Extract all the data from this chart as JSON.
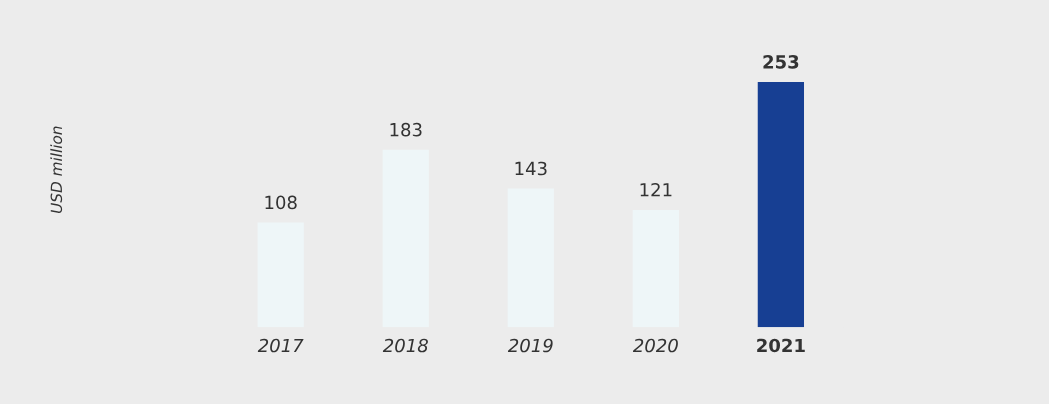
{
  "chart_data": {
    "type": "bar",
    "annotations": [
      "USD million"
    ],
    "categories": [
      "2017",
      "2018",
      "2019",
      "2020",
      "2021"
    ],
    "values": [
      108,
      183,
      143,
      121,
      253
    ],
    "colors": [
      "#eef6f8",
      "#eef6f8",
      "#eef6f8",
      "#eef6f8",
      "#173f93"
    ],
    "data_labels": true
  }
}
